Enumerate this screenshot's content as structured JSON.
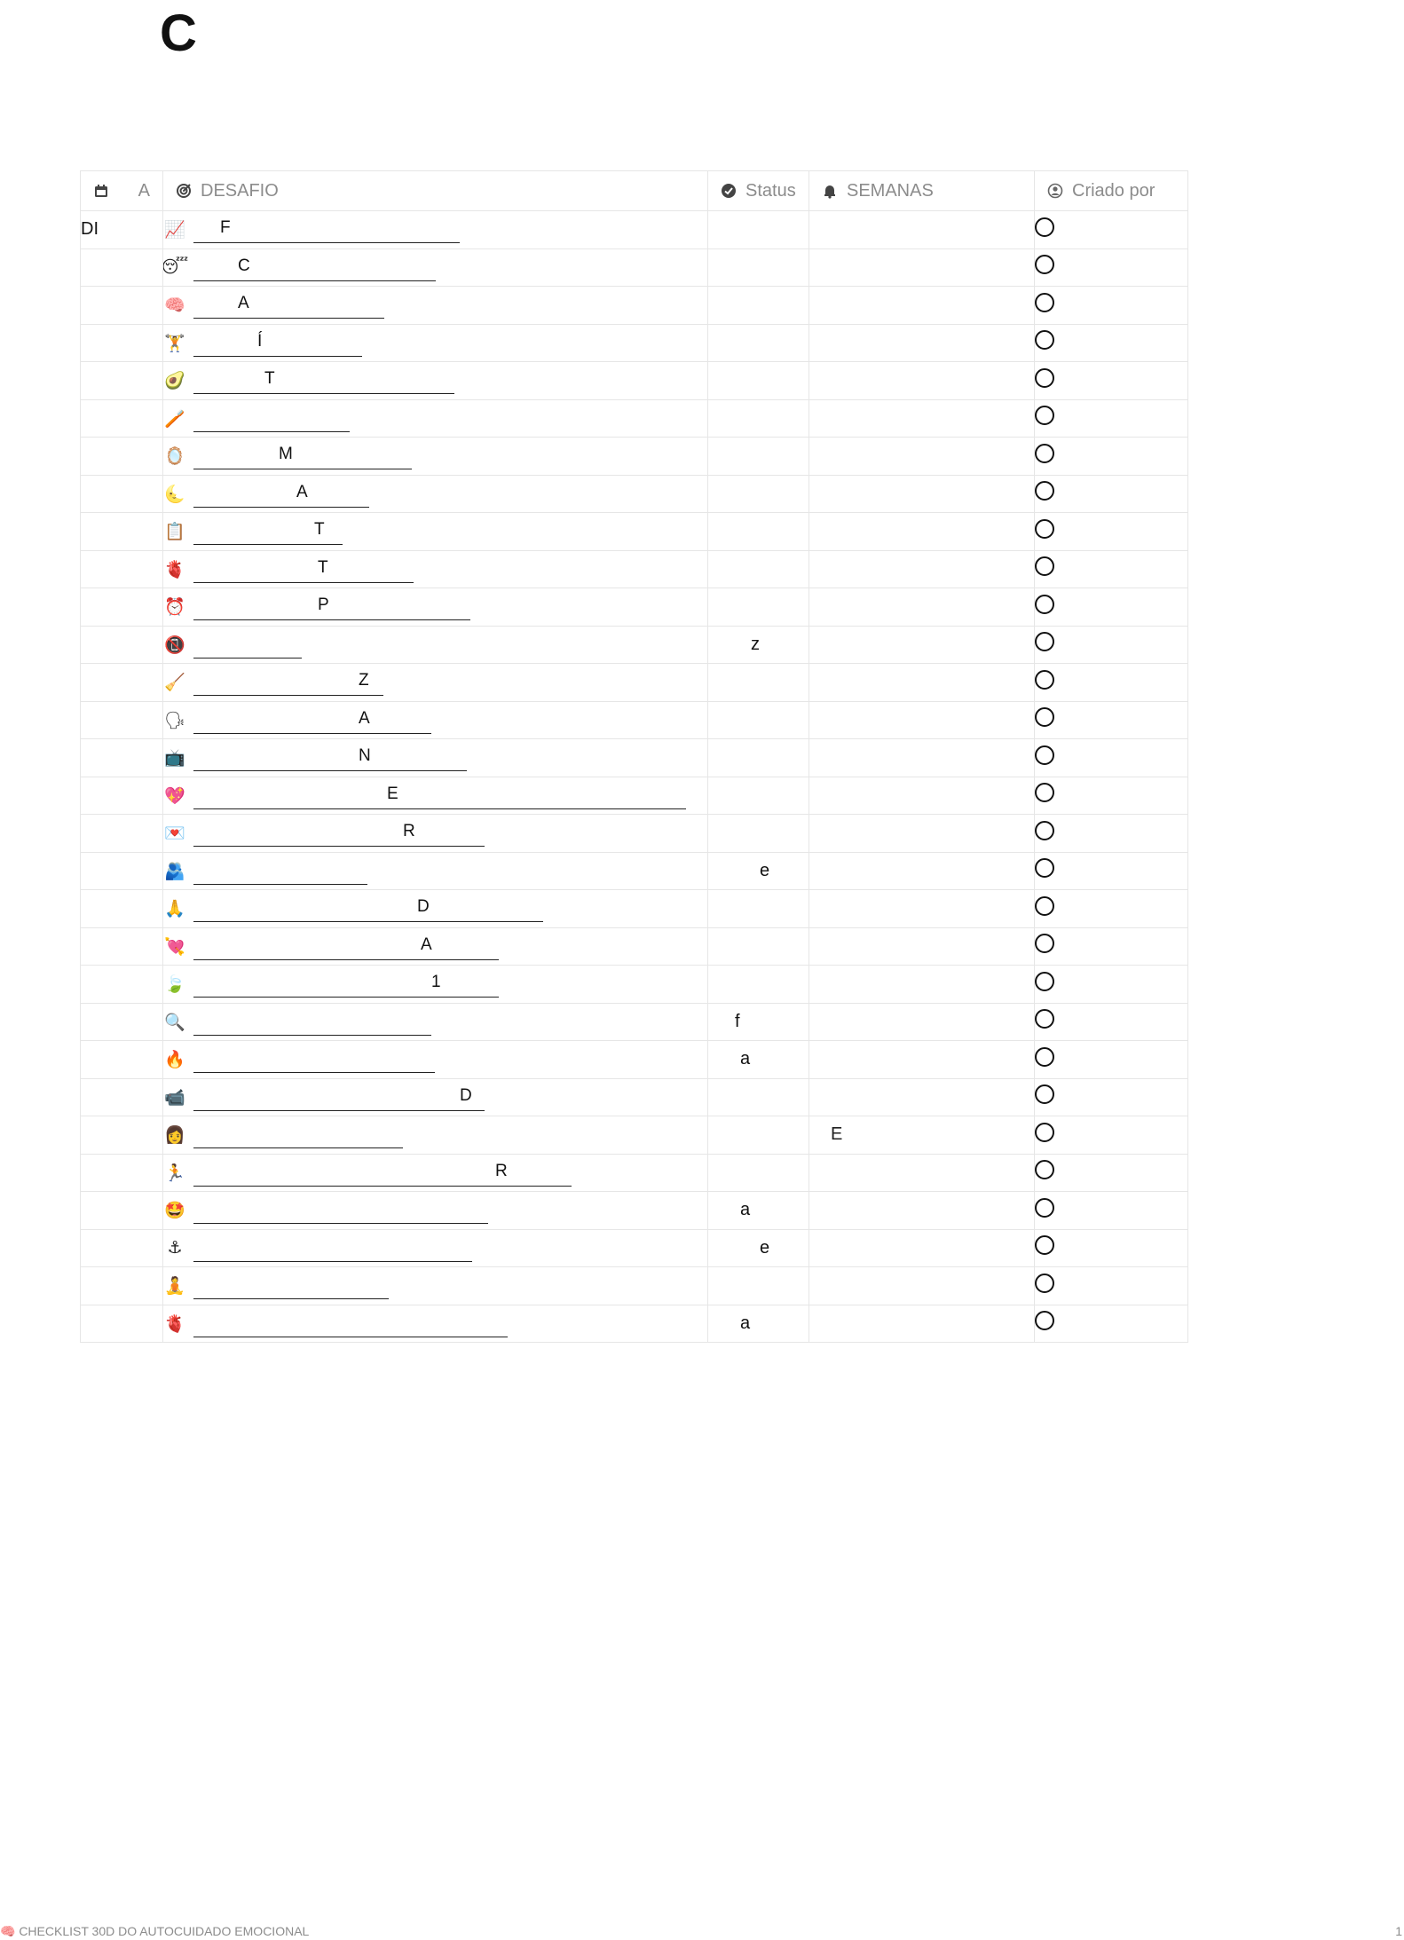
{
  "page": {
    "title": "C"
  },
  "table": {
    "headers": {
      "day": "A",
      "challenge": "DESAFIO",
      "status": "Status",
      "weeks": "SEMANAS",
      "created_by": "Criado por"
    },
    "header_icons": {
      "day": "calendar-icon",
      "challenge": "target-icon",
      "status": "check-circle-icon",
      "weeks": "bell-icon",
      "created_by": "user-circle-icon"
    },
    "rows": [
      {
        "day": "DI",
        "emoji": "📈",
        "letter": "F",
        "status": "",
        "weeks": ""
      },
      {
        "day": "",
        "emoji": "😴",
        "letter": "C",
        "status": "",
        "weeks": ""
      },
      {
        "day": "",
        "emoji": "🧠",
        "letter": "A",
        "status": "",
        "weeks": ""
      },
      {
        "day": "",
        "emoji": "🏋",
        "letter": "Í",
        "status": "",
        "weeks": ""
      },
      {
        "day": "",
        "emoji": "🥑",
        "letter": "T",
        "status": "",
        "weeks": ""
      },
      {
        "day": "",
        "emoji": "🪥",
        "letter": "",
        "status": "",
        "weeks": ""
      },
      {
        "day": "",
        "emoji": "🪞",
        "letter": "M",
        "status": "",
        "weeks": ""
      },
      {
        "day": "",
        "emoji": "🌜",
        "letter": "A",
        "status": "",
        "weeks": ""
      },
      {
        "day": "",
        "emoji": "📋",
        "letter": "T",
        "status": "",
        "weeks": ""
      },
      {
        "day": "",
        "emoji": "🫀",
        "letter": "T",
        "status": "",
        "weeks": ""
      },
      {
        "day": "",
        "emoji": "⏰",
        "letter": "P",
        "status": "",
        "weeks": ""
      },
      {
        "day": "",
        "emoji": "📵",
        "letter": "",
        "status": "z",
        "weeks": ""
      },
      {
        "day": "",
        "emoji": "🧹",
        "letter": "Z",
        "status": "",
        "weeks": ""
      },
      {
        "day": "",
        "emoji": "🗣",
        "letter": "A",
        "status": "",
        "weeks": ""
      },
      {
        "day": "",
        "emoji": "📺",
        "letter": "N",
        "status": "",
        "weeks": ""
      },
      {
        "day": "",
        "emoji": "💖",
        "letter": "E",
        "status": "",
        "weeks": ""
      },
      {
        "day": "",
        "emoji": "💌",
        "letter": "R",
        "status": "",
        "weeks": ""
      },
      {
        "day": "",
        "emoji": "🫂",
        "letter": "",
        "status": "e",
        "weeks": ""
      },
      {
        "day": "",
        "emoji": "🙏",
        "letter": "D",
        "status": "",
        "weeks": ""
      },
      {
        "day": "",
        "emoji": "💘",
        "letter": "A",
        "status": "",
        "weeks": ""
      },
      {
        "day": "",
        "emoji": "🍃",
        "letter": "1",
        "status": "",
        "weeks": ""
      },
      {
        "day": "",
        "emoji": "🔍",
        "letter": "",
        "status": "f",
        "weeks": ""
      },
      {
        "day": "",
        "emoji": "🔥",
        "letter": "",
        "status": "a",
        "weeks": ""
      },
      {
        "day": "",
        "emoji": "📹",
        "letter": "D",
        "status": "",
        "weeks": ""
      },
      {
        "day": "",
        "emoji": "👩",
        "letter": "",
        "status": "",
        "weeks": "E"
      },
      {
        "day": "",
        "emoji": "🏃",
        "letter": "R",
        "status": "",
        "weeks": ""
      },
      {
        "day": "",
        "emoji": "🤩",
        "letter": "",
        "status": "a",
        "weeks": ""
      },
      {
        "day": "",
        "emoji": "⚓",
        "letter": "",
        "status": "e",
        "weeks": ""
      },
      {
        "day": "",
        "emoji": "🧘",
        "letter": "",
        "status": "",
        "weeks": ""
      },
      {
        "day": "",
        "emoji": "🫀",
        "letter": "",
        "status": "a",
        "weeks": ""
      }
    ]
  },
  "footer": {
    "text": "🧠 CHECKLIST 30D DO AUTOCUIDADO EMOCIONAL",
    "page_number": "1"
  }
}
